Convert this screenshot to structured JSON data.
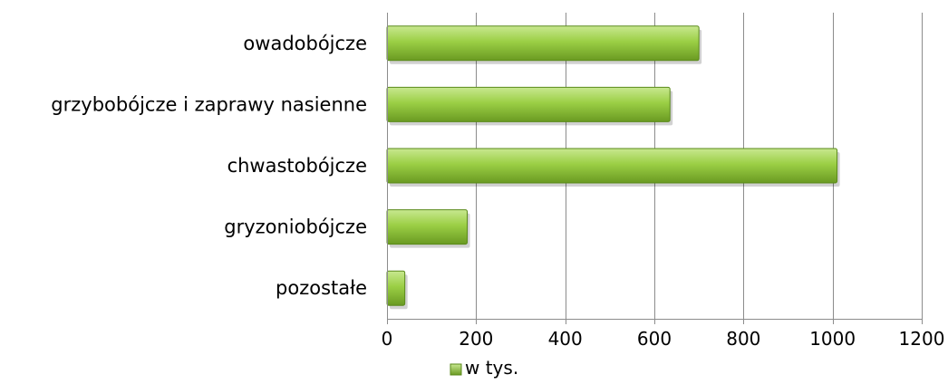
{
  "chart_data": {
    "type": "bar",
    "orientation": "horizontal",
    "categories": [
      "owadobójcze",
      "grzybobójcze i zaprawy nasienne",
      "chwastobójcze",
      "gryzoniobójcze",
      "pozostałe"
    ],
    "series": [
      {
        "name": "w tys.",
        "values": [
          700,
          635,
          1010,
          180,
          40
        ]
      }
    ],
    "xlim": [
      0,
      1200
    ],
    "xticks": [
      0,
      200,
      400,
      600,
      800,
      1000,
      1200
    ],
    "grid": true,
    "legend": "bottom-center",
    "colors": {
      "bar_light": "#c8e890",
      "bar_mid": "#9bcf45",
      "bar_dark": "#6a9a22",
      "bar_edge": "#5a8a1a",
      "gridline": "#8c8c8c",
      "axis": "#8c8c8c"
    }
  }
}
